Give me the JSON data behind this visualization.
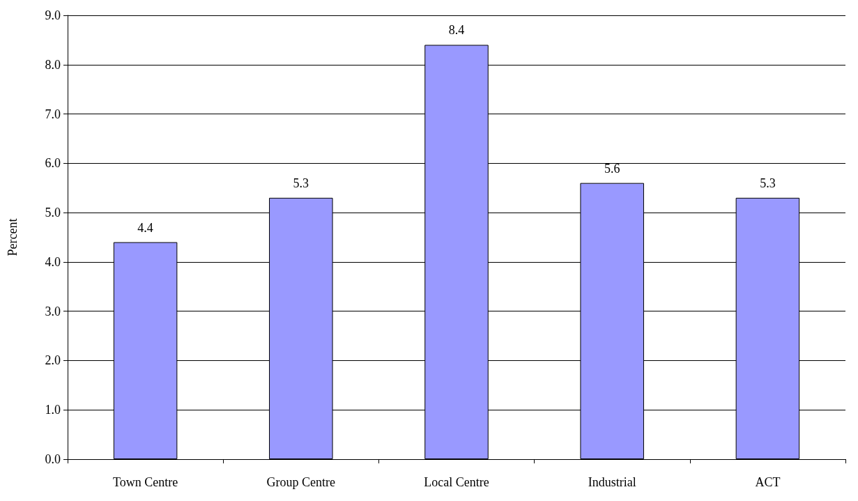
{
  "chart_data": {
    "type": "bar",
    "ylabel": "Percent",
    "categories": [
      "Town Centre",
      "Group Centre",
      "Local Centre",
      "Industrial",
      "ACT"
    ],
    "values": [
      4.4,
      5.3,
      8.4,
      5.6,
      5.3
    ],
    "color": "#9999ff",
    "data_labels": true,
    "ylim": [
      0,
      9
    ],
    "yticks": [
      {
        "value": 0,
        "label": "0.0"
      },
      {
        "value": 1,
        "label": "1.0"
      },
      {
        "value": 2,
        "label": "2.0"
      },
      {
        "value": 3,
        "label": "3.0"
      },
      {
        "value": 4,
        "label": "4.0"
      },
      {
        "value": 5,
        "label": "5.0"
      },
      {
        "value": 6,
        "label": "6.0"
      },
      {
        "value": 7,
        "label": "7.0"
      },
      {
        "value": 8,
        "label": "8.0"
      },
      {
        "value": 9,
        "label": "9.0"
      }
    ],
    "grid": "y"
  }
}
